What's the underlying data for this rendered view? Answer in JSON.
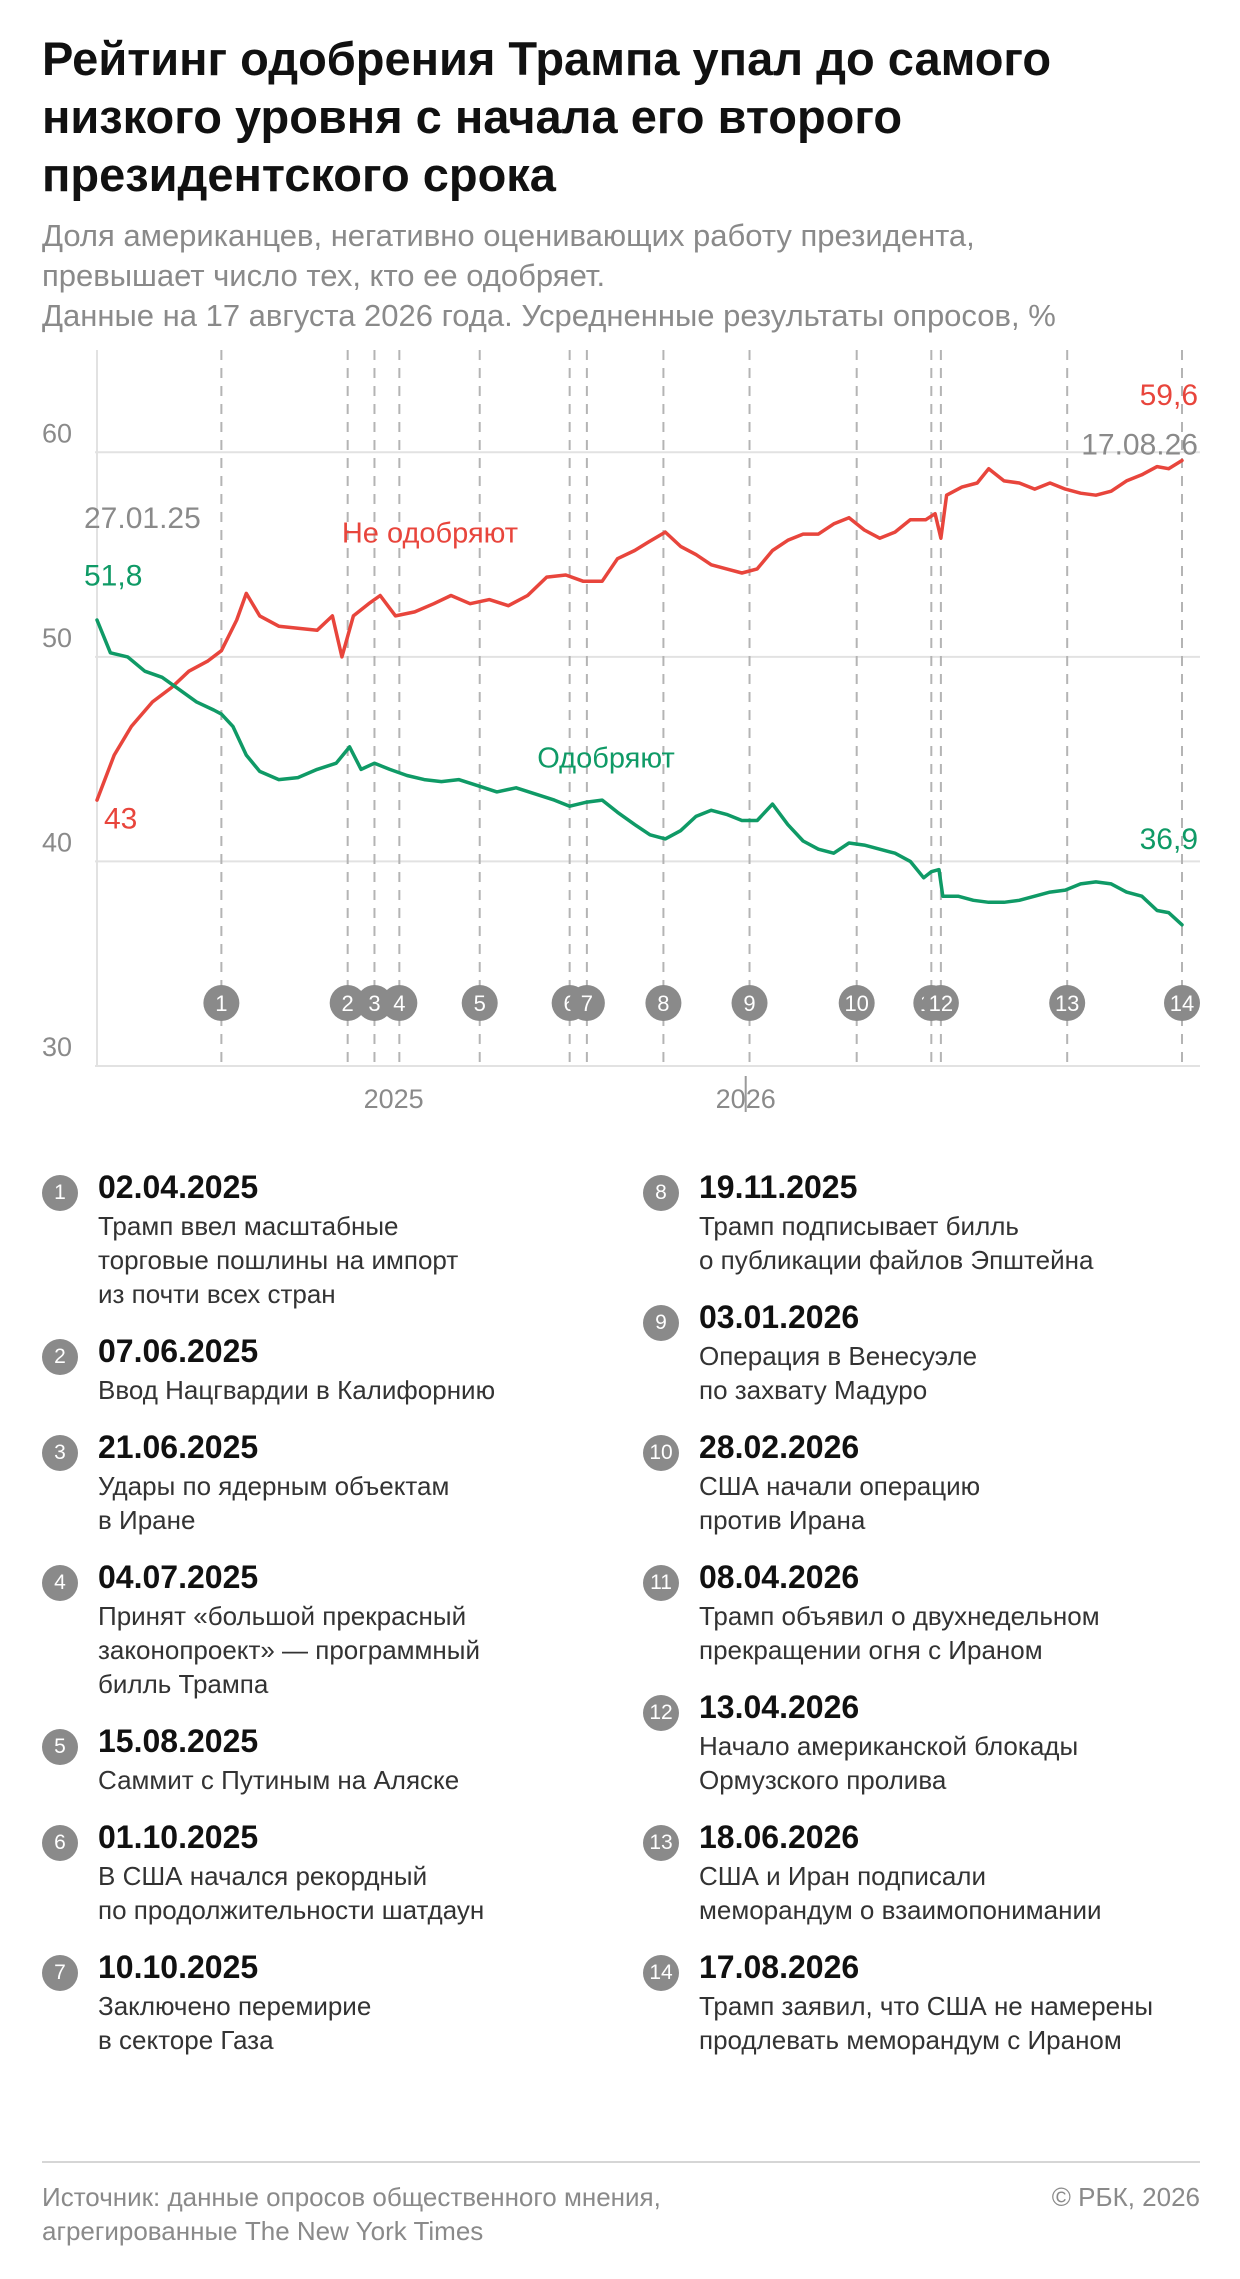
{
  "title": "Рейтинг одобрения Трампа упал до самого низкого уровня с начала его второго президентского срока",
  "subtitle": {
    "line1": "Доля американцев, негативно оценивающих работу президента,",
    "line2": "превышает число тех, кто ее одобряет.",
    "line3": "Данные на 17 августа 2026 года. Усредненные результаты опросов, %"
  },
  "colors": {
    "disapprove": "#e8453c",
    "approve": "#0f9a66",
    "marker": "#8a8a8a",
    "grid": "#e2e2e2",
    "axis_text": "#8a8a8a"
  },
  "chart_data": {
    "type": "line",
    "x_start": "2025-01-27",
    "x_end": "2026-08-17",
    "ylim": [
      30,
      65
    ],
    "yticks": [
      30,
      40,
      50,
      60
    ],
    "xtick_labels": [
      {
        "date": "2025-07-01",
        "label": "2025"
      },
      {
        "date": "2026-01-01",
        "label": "2026"
      }
    ],
    "series": [
      {
        "name": "Не одобряют",
        "label_date": "2025-07-20",
        "color": "#e8453c",
        "start_value_label": "43",
        "end_value_label": "59,6",
        "points": [
          [
            "2025-01-27",
            43
          ],
          [
            "2025-02-05",
            45.2
          ],
          [
            "2025-02-14",
            46.6
          ],
          [
            "2025-02-25",
            47.8
          ],
          [
            "2025-03-07",
            48.5
          ],
          [
            "2025-03-16",
            49.3
          ],
          [
            "2025-03-26",
            49.8
          ],
          [
            "2025-04-02",
            50.3
          ],
          [
            "2025-04-10",
            51.8
          ],
          [
            "2025-04-15",
            53.1
          ],
          [
            "2025-04-22",
            52.0
          ],
          [
            "2025-05-02",
            51.5
          ],
          [
            "2025-05-12",
            51.4
          ],
          [
            "2025-05-22",
            51.3
          ],
          [
            "2025-05-30",
            52.0
          ],
          [
            "2025-06-04",
            50.0
          ],
          [
            "2025-06-10",
            52.0
          ],
          [
            "2025-06-18",
            52.6
          ],
          [
            "2025-06-24",
            53.0
          ],
          [
            "2025-07-02",
            52.0
          ],
          [
            "2025-07-12",
            52.2
          ],
          [
            "2025-07-22",
            52.6
          ],
          [
            "2025-07-31",
            53.0
          ],
          [
            "2025-08-10",
            52.6
          ],
          [
            "2025-08-20",
            52.8
          ],
          [
            "2025-08-30",
            52.5
          ],
          [
            "2025-09-09",
            53.0
          ],
          [
            "2025-09-19",
            53.9
          ],
          [
            "2025-09-29",
            54.0
          ],
          [
            "2025-10-08",
            53.7
          ],
          [
            "2025-10-18",
            53.7
          ],
          [
            "2025-10-26",
            54.8
          ],
          [
            "2025-11-04",
            55.2
          ],
          [
            "2025-11-11",
            55.6
          ],
          [
            "2025-11-20",
            56.1
          ],
          [
            "2025-11-28",
            55.4
          ],
          [
            "2025-12-06",
            55.0
          ],
          [
            "2025-12-14",
            54.5
          ],
          [
            "2025-12-22",
            54.3
          ],
          [
            "2025-12-30",
            54.1
          ],
          [
            "2026-01-07",
            54.3
          ],
          [
            "2026-01-15",
            55.2
          ],
          [
            "2026-01-23",
            55.7
          ],
          [
            "2026-01-31",
            56.0
          ],
          [
            "2026-02-08",
            56.0
          ],
          [
            "2026-02-16",
            56.5
          ],
          [
            "2026-02-24",
            56.8
          ],
          [
            "2026-03-04",
            56.2
          ],
          [
            "2026-03-12",
            55.8
          ],
          [
            "2026-03-20",
            56.1
          ],
          [
            "2026-03-28",
            56.7
          ],
          [
            "2026-04-05",
            56.7
          ],
          [
            "2026-04-10",
            57.0
          ],
          [
            "2026-04-13",
            55.8
          ],
          [
            "2026-04-16",
            57.9
          ],
          [
            "2026-04-24",
            58.3
          ],
          [
            "2026-05-02",
            58.5
          ],
          [
            "2026-05-08",
            59.2
          ],
          [
            "2026-05-16",
            58.6
          ],
          [
            "2026-05-24",
            58.5
          ],
          [
            "2026-06-01",
            58.2
          ],
          [
            "2026-06-09",
            58.5
          ],
          [
            "2026-06-17",
            58.2
          ],
          [
            "2026-06-25",
            58.0
          ],
          [
            "2026-07-03",
            57.9
          ],
          [
            "2026-07-11",
            58.1
          ],
          [
            "2026-07-19",
            58.6
          ],
          [
            "2026-07-27",
            58.9
          ],
          [
            "2026-08-04",
            59.3
          ],
          [
            "2026-08-10",
            59.2
          ],
          [
            "2026-08-17",
            59.6
          ]
        ]
      },
      {
        "name": "Одобряют",
        "label_date": "2025-10-20",
        "color": "#0f9a66",
        "start_value_label": "51,8",
        "end_value_label": "36,9",
        "points": [
          [
            "2025-01-27",
            51.8
          ],
          [
            "2025-02-03",
            50.2
          ],
          [
            "2025-02-12",
            50.0
          ],
          [
            "2025-02-21",
            49.3
          ],
          [
            "2025-03-02",
            49.0
          ],
          [
            "2025-03-11",
            48.4
          ],
          [
            "2025-03-20",
            47.8
          ],
          [
            "2025-03-29",
            47.4
          ],
          [
            "2025-04-02",
            47.2
          ],
          [
            "2025-04-08",
            46.6
          ],
          [
            "2025-04-15",
            45.2
          ],
          [
            "2025-04-22",
            44.4
          ],
          [
            "2025-05-02",
            44.0
          ],
          [
            "2025-05-12",
            44.1
          ],
          [
            "2025-05-22",
            44.5
          ],
          [
            "2025-06-01",
            44.8
          ],
          [
            "2025-06-08",
            45.6
          ],
          [
            "2025-06-14",
            44.5
          ],
          [
            "2025-06-21",
            44.8
          ],
          [
            "2025-06-29",
            44.5
          ],
          [
            "2025-07-08",
            44.2
          ],
          [
            "2025-07-17",
            44.0
          ],
          [
            "2025-07-26",
            43.9
          ],
          [
            "2025-08-04",
            44.0
          ],
          [
            "2025-08-14",
            43.7
          ],
          [
            "2025-08-24",
            43.4
          ],
          [
            "2025-09-03",
            43.6
          ],
          [
            "2025-09-13",
            43.3
          ],
          [
            "2025-09-23",
            43.0
          ],
          [
            "2025-10-01",
            42.7
          ],
          [
            "2025-10-10",
            42.9
          ],
          [
            "2025-10-18",
            43.0
          ],
          [
            "2025-10-26",
            42.4
          ],
          [
            "2025-11-04",
            41.8
          ],
          [
            "2025-11-12",
            41.3
          ],
          [
            "2025-11-20",
            41.1
          ],
          [
            "2025-11-28",
            41.5
          ],
          [
            "2025-12-06",
            42.2
          ],
          [
            "2025-12-14",
            42.5
          ],
          [
            "2025-12-22",
            42.3
          ],
          [
            "2025-12-30",
            42.0
          ],
          [
            "2026-01-07",
            42.0
          ],
          [
            "2026-01-15",
            42.8
          ],
          [
            "2026-01-23",
            41.8
          ],
          [
            "2026-01-31",
            41.0
          ],
          [
            "2026-02-08",
            40.6
          ],
          [
            "2026-02-16",
            40.4
          ],
          [
            "2026-02-24",
            40.9
          ],
          [
            "2026-03-04",
            40.8
          ],
          [
            "2026-03-12",
            40.6
          ],
          [
            "2026-03-20",
            40.4
          ],
          [
            "2026-03-28",
            40.0
          ],
          [
            "2026-04-04",
            39.2
          ],
          [
            "2026-04-08",
            39.5
          ],
          [
            "2026-04-12",
            39.6
          ],
          [
            "2026-04-14",
            38.3
          ],
          [
            "2026-04-22",
            38.3
          ],
          [
            "2026-04-30",
            38.1
          ],
          [
            "2026-05-08",
            38.0
          ],
          [
            "2026-05-16",
            38.0
          ],
          [
            "2026-05-24",
            38.1
          ],
          [
            "2026-06-01",
            38.3
          ],
          [
            "2026-06-09",
            38.5
          ],
          [
            "2026-06-17",
            38.6
          ],
          [
            "2026-06-25",
            38.9
          ],
          [
            "2026-07-03",
            39.0
          ],
          [
            "2026-07-11",
            38.9
          ],
          [
            "2026-07-19",
            38.5
          ],
          [
            "2026-07-27",
            38.3
          ],
          [
            "2026-08-04",
            37.6
          ],
          [
            "2026-08-10",
            37.5
          ],
          [
            "2026-08-17",
            36.9
          ]
        ]
      }
    ],
    "start_date_label": "27.01.25",
    "end_date_label": "17.08.26",
    "events": [
      {
        "n": "1",
        "date": "2025-04-02"
      },
      {
        "n": "2",
        "date": "2025-06-07"
      },
      {
        "n": "3",
        "date": "2025-06-21"
      },
      {
        "n": "4",
        "date": "2025-07-04"
      },
      {
        "n": "5",
        "date": "2025-08-15"
      },
      {
        "n": "6",
        "date": "2025-10-01"
      },
      {
        "n": "7",
        "date": "2025-10-10"
      },
      {
        "n": "8",
        "date": "2025-11-19"
      },
      {
        "n": "9",
        "date": "2026-01-03"
      },
      {
        "n": "10",
        "date": "2026-02-28"
      },
      {
        "n": "11",
        "date": "2026-04-08"
      },
      {
        "n": "12",
        "date": "2026-04-13"
      },
      {
        "n": "13",
        "date": "2026-06-18"
      },
      {
        "n": "14",
        "date": "2026-08-17"
      }
    ]
  },
  "events_left": [
    {
      "n": "1",
      "date": "02.04.2025",
      "text": "Трамп ввел масштабные\nторговые пошлины на импорт\nиз почти всех стран"
    },
    {
      "n": "2",
      "date": "07.06.2025",
      "text": "Ввод Нацгвардии в Калифорнию"
    },
    {
      "n": "3",
      "date": "21.06.2025",
      "text": "Удары по ядерным объектам\nв Иране"
    },
    {
      "n": "4",
      "date": "04.07.2025",
      "text": "Принят «большой прекрасный\nзаконопроект» — программный\nбилль Трампа"
    },
    {
      "n": "5",
      "date": "15.08.2025",
      "text": "Саммит с Путиным на Аляске"
    },
    {
      "n": "6",
      "date": "01.10.2025",
      "text": "В США начался рекордный\nпо продолжительности шатдаун"
    },
    {
      "n": "7",
      "date": "10.10.2025",
      "text": "Заключено перемирие\nв секторе Газа"
    }
  ],
  "events_right": [
    {
      "n": "8",
      "date": "19.11.2025",
      "text": "Трамп подписывает билль\nо публикации файлов Эпштейна"
    },
    {
      "n": "9",
      "date": "03.01.2026",
      "text": "Операция в Венесуэле\nпо захвату Мадуро"
    },
    {
      "n": "10",
      "date": "28.02.2026",
      "text": "США начали операцию\nпротив Ирана"
    },
    {
      "n": "11",
      "date": "08.04.2026",
      "text": "Трамп объявил о двухнедельном\nпрекращении огня с Ираном"
    },
    {
      "n": "12",
      "date": "13.04.2026",
      "text": "Начало американской блокады\nОрмузского пролива"
    },
    {
      "n": "13",
      "date": "18.06.2026",
      "text": "США и Иран подписали\nмеморандум о взаимопонимании"
    },
    {
      "n": "14",
      "date": "17.08.2026",
      "text": "Трамп заявил, что США не намерены\nпродлевать меморандум с Ираном"
    }
  ],
  "footer": {
    "source": "Источник: данные опросов общественного мнения,\nагрегированные The New York Times",
    "copyright": "© РБК, 2026"
  }
}
